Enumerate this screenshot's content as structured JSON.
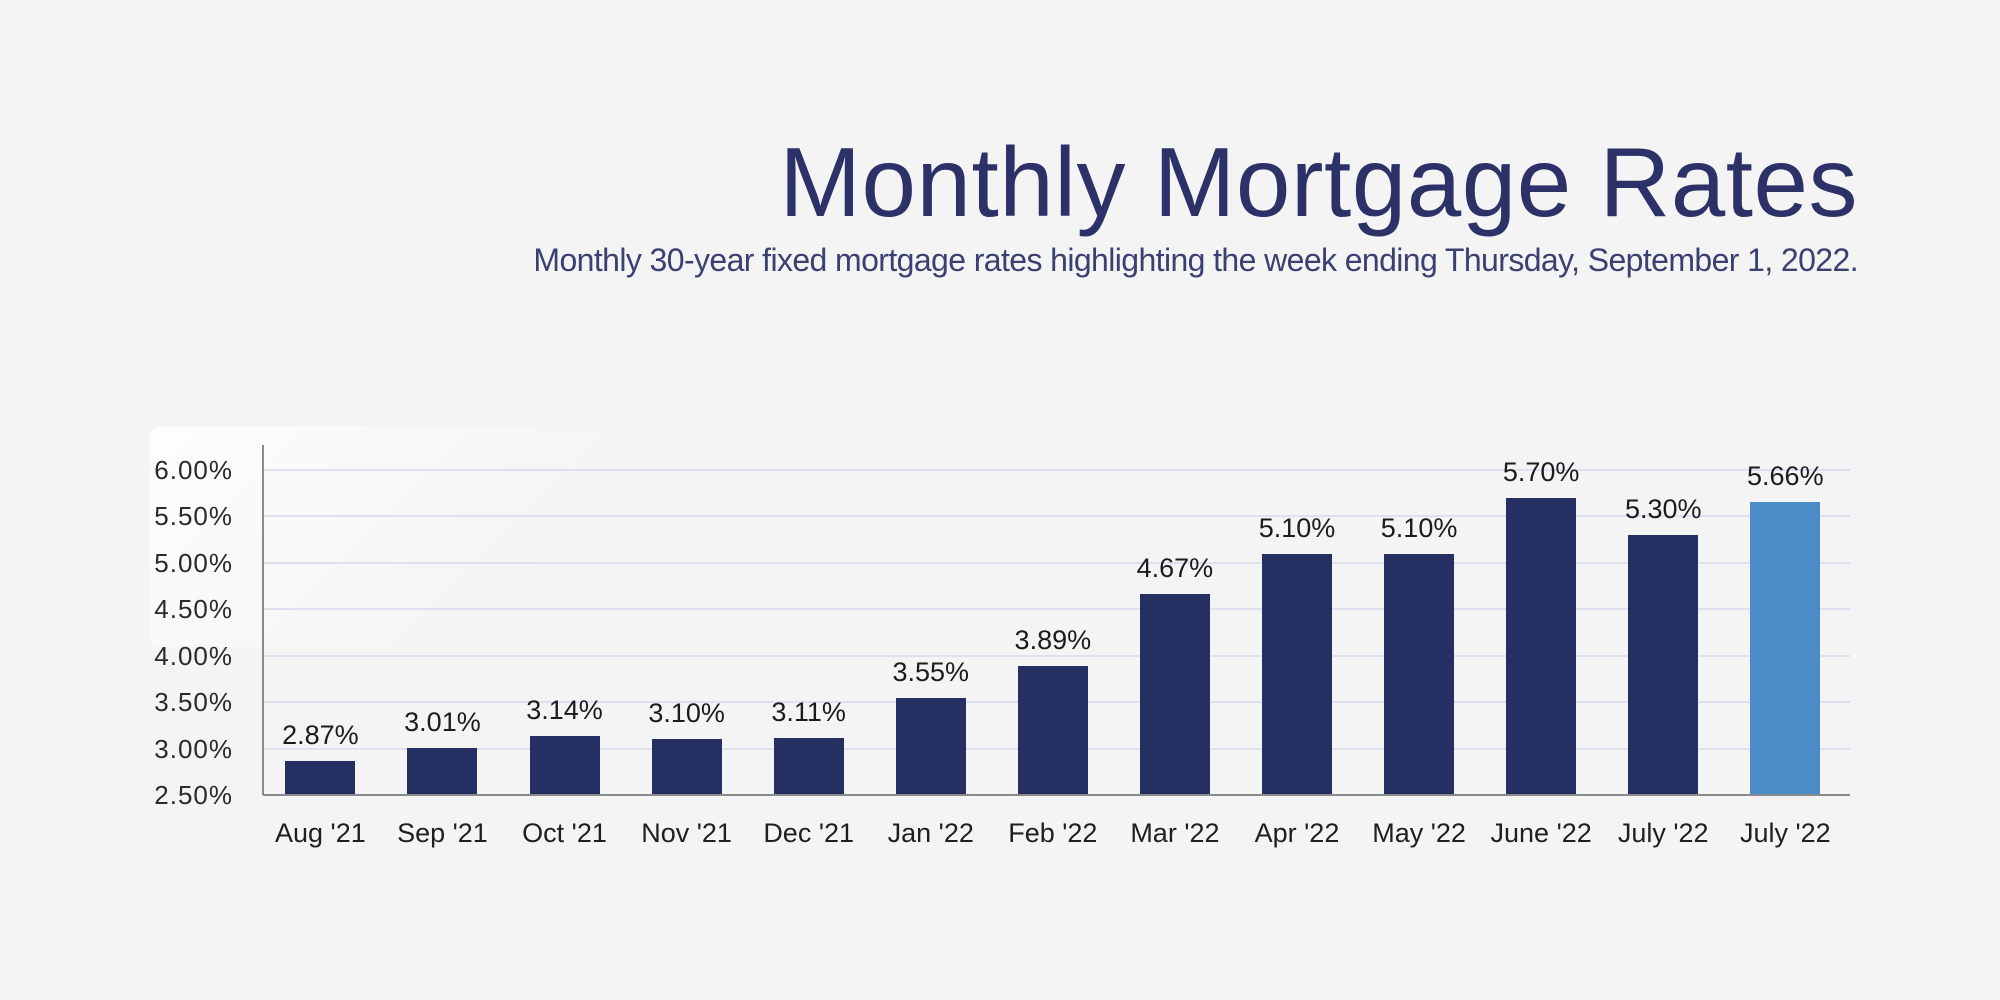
{
  "colors": {
    "background": "#f4f4f5",
    "title_navy": "#2c3267",
    "subtitle_navy": "#3a4070",
    "bar_navy": "#262f61",
    "bar_highlight_blue": "#4b8bc8",
    "gridline": "#dbe1ee",
    "axis_gray": "#8a8a8a"
  },
  "header": {
    "title": "Monthly Mortgage Rates",
    "subtitle": "Monthly 30-year fixed mortgage rates highlighting the week ending Thursday, September 1, 2022."
  },
  "chart_data": {
    "type": "bar",
    "title": "Monthly Mortgage Rates",
    "subtitle": "Monthly 30-year fixed mortgage rates highlighting the week ending Thursday, September 1, 2022.",
    "categories": [
      "Aug '21",
      "Sep '21",
      "Oct '21",
      "Nov '21",
      "Dec '21",
      "Jan '22",
      "Feb '22",
      "Mar '22",
      "Apr '22",
      "May '22",
      "June '22",
      "July '22",
      "July '22"
    ],
    "values": [
      2.87,
      3.01,
      3.14,
      3.1,
      3.11,
      3.55,
      3.89,
      4.67,
      5.1,
      5.1,
      5.7,
      5.3,
      5.66
    ],
    "value_labels": [
      "2.87%",
      "3.01%",
      "3.14%",
      "3.10%",
      "3.11%",
      "3.55%",
      "3.89%",
      "4.67%",
      "5.10%",
      "5.10%",
      "5.70%",
      "5.30%",
      "5.66%"
    ],
    "highlight_index": 12,
    "series_name": "30-year fixed mortgage rate",
    "xlabel": "",
    "ylabel": "",
    "ylim": [
      2.5,
      6.0
    ],
    "y_ticks": [
      {
        "value": 6.0,
        "label": "6.00%"
      },
      {
        "value": 5.5,
        "label": "5.50%"
      },
      {
        "value": 5.0,
        "label": "5.00%"
      },
      {
        "value": 4.5,
        "label": "4.50%"
      },
      {
        "value": 4.0,
        "label": "4.00%"
      },
      {
        "value": 3.5,
        "label": "3.50%"
      },
      {
        "value": 3.0,
        "label": "3.00%"
      },
      {
        "value": 2.5,
        "label": "2.50%"
      }
    ],
    "grid": true,
    "legend": "none",
    "bar_color": "#262f61",
    "highlight_color": "#4b8bc8"
  }
}
